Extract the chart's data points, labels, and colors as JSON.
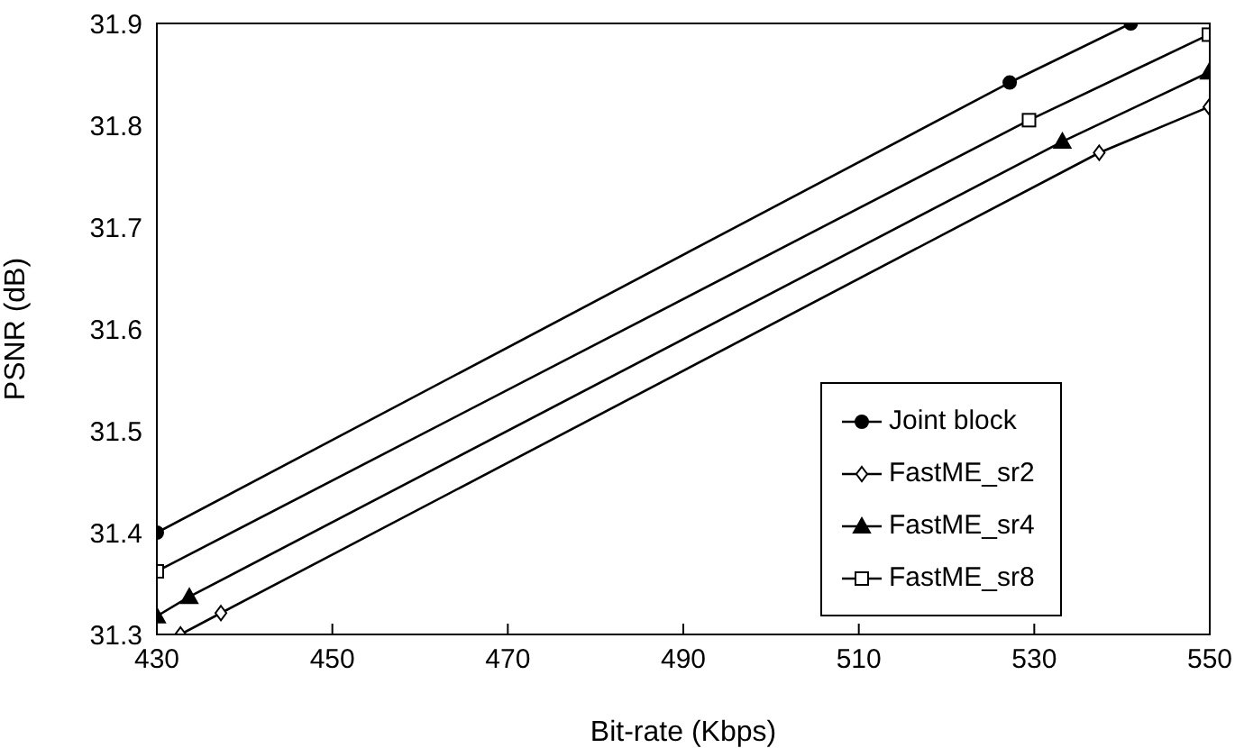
{
  "chart_data": {
    "type": "line",
    "xlabel": "Bit-rate (Kbps)",
    "ylabel": "PSNR (dB)",
    "xlim": [
      430,
      550
    ],
    "xticks": [
      430,
      450,
      470,
      490,
      510,
      530,
      550
    ],
    "ylim": [
      31.3,
      31.9
    ],
    "yticks": [
      31.3,
      31.4,
      31.5,
      31.6,
      31.7,
      31.8,
      31.9
    ],
    "grid": false,
    "legend": "bottom right",
    "line_style": "solid",
    "series": [
      {
        "name": "Joint block",
        "color": "#000000",
        "marker": "circle",
        "x": [
          430,
          527.2,
          541
        ],
        "values": [
          31.4,
          31.842,
          31.9
        ]
      },
      {
        "name": "FastME_sr2",
        "color": "#000000",
        "marker": "diamond",
        "x": [
          432.7,
          437.3,
          537.4,
          549.9
        ],
        "values": [
          31.3,
          31.321,
          31.773,
          31.818
        ]
      },
      {
        "name": "FastME_sr4",
        "color": "#000000",
        "marker": "triangle",
        "x": [
          430,
          433.7,
          533.2,
          549.9
        ],
        "values": [
          31.318,
          31.337,
          31.784,
          31.852
        ]
      },
      {
        "name": "FastME_sr8",
        "color": "#000000",
        "marker": "square",
        "x": [
          430,
          529.4,
          549.9
        ],
        "values": [
          31.362,
          31.805,
          31.889
        ]
      }
    ]
  }
}
